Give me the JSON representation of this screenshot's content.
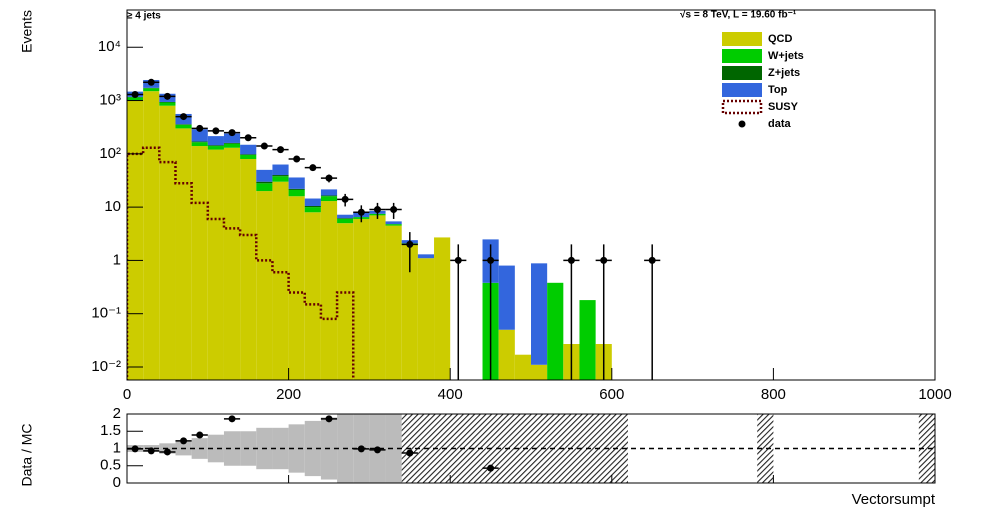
{
  "chart_data": {
    "type": "stacked_histogram",
    "annotation_left": "≥ 4 jets",
    "annotation_right": "√s = 8 TeV, L = 19.60 fb⁻¹",
    "y_label": "Events",
    "x_label": "Vectorsumpt",
    "ratio_label": "Data / MC",
    "log_y": true,
    "xlim": [
      0,
      1000
    ],
    "xticks": [
      0,
      200,
      400,
      600,
      800,
      1000
    ],
    "ylim": [
      0.0057,
      50000
    ],
    "yticks": [
      {
        "value": 0.01,
        "label": "10⁻²"
      },
      {
        "value": 0.1,
        "label": "10⁻¹"
      },
      1,
      10,
      {
        "value": 100,
        "label": "10²"
      },
      {
        "value": 1000,
        "label": "10³"
      },
      {
        "value": 10000,
        "label": "10⁴"
      }
    ],
    "bins": [
      0,
      20,
      40,
      60,
      80,
      100,
      120,
      140,
      160,
      180,
      200,
      220,
      240,
      260,
      280,
      300,
      320,
      340,
      360,
      380,
      400,
      420,
      440,
      460,
      480,
      500,
      520,
      540,
      560,
      580,
      600
    ],
    "series": [
      {
        "name": "QCD",
        "color": "#cccc00",
        "values": [
          1000,
          1500,
          800,
          300,
          140,
          120,
          130,
          80,
          20,
          30,
          16,
          8,
          13,
          5,
          6,
          7,
          4.5,
          2,
          1.1,
          2.7,
          0,
          0,
          0,
          0.05,
          0.017,
          0.011,
          0,
          0.027,
          0,
          0.027
        ]
      },
      {
        "name": "W+jets",
        "color": "#00cc00",
        "values": [
          150,
          200,
          120,
          50,
          25,
          20,
          25,
          15,
          8,
          8,
          5,
          2,
          3,
          1,
          0.5,
          0.5,
          0.3,
          0.1,
          0,
          0,
          0,
          0,
          0.38,
          0,
          0,
          0,
          0.38,
          0,
          0.18,
          0
        ]
      },
      {
        "name": "Z+jets",
        "color": "#006600",
        "values": [
          20,
          30,
          20,
          10,
          5,
          5,
          5,
          3,
          2,
          2,
          1,
          0.5,
          0.5,
          0.2,
          0,
          0,
          0,
          0,
          0,
          0,
          0,
          0,
          0,
          0,
          0,
          0,
          0,
          0,
          0,
          0
        ]
      },
      {
        "name": "Top",
        "color": "#3366dd",
        "values": [
          300,
          700,
          400,
          200,
          120,
          70,
          80,
          50,
          20,
          23,
          14,
          4,
          5,
          1,
          1.5,
          1,
          0.6,
          0.3,
          0.2,
          0,
          0,
          0,
          2.1,
          0.75,
          0,
          0.87,
          0,
          0,
          0,
          0
        ]
      }
    ],
    "signal": {
      "name": "SUSY",
      "color": "#660000",
      "values": [
        100,
        130,
        70,
        28,
        12,
        6,
        4,
        3,
        1,
        0.6,
        0.25,
        0.15,
        0.08,
        0.25
      ]
    },
    "data": {
      "name": "data",
      "color": "#000000",
      "xerr": 10,
      "x": [
        10,
        30,
        50,
        70,
        90,
        110,
        130,
        150,
        170,
        190,
        210,
        230,
        250,
        270,
        290,
        310,
        330,
        350,
        410,
        450,
        550,
        590,
        650
      ],
      "values": [
        1300,
        2200,
        1200,
        500,
        300,
        270,
        250,
        200,
        140,
        120,
        80,
        55,
        35,
        14,
        8,
        9,
        9,
        2,
        1,
        1,
        1,
        1,
        1
      ],
      "errors": [
        36,
        47,
        35,
        22,
        17,
        16,
        16,
        14,
        12,
        11,
        9,
        7.4,
        5.9,
        3.7,
        2.8,
        3,
        3,
        1.4,
        1,
        1,
        1,
        1,
        1
      ]
    },
    "ratio_ylim": [
      0,
      2
    ],
    "ratio_yticks": [
      0,
      0.5,
      1,
      1.5,
      2
    ],
    "ratio_reference": 1,
    "ratio_band_errors": [
      0.1,
      0.1,
      0.15,
      0.2,
      0.3,
      0.4,
      0.5,
      0.5,
      0.6,
      0.6,
      0.7,
      0.8,
      0.9,
      1,
      1,
      1,
      1,
      1,
      1,
      1
    ],
    "ratio_hatched": [
      [
        340,
        440
      ],
      [
        440,
        620
      ],
      [
        780,
        800
      ],
      [
        980,
        1000
      ]
    ],
    "ratio_points": {
      "x": [
        10,
        30,
        50,
        70,
        90,
        130,
        250,
        290,
        310,
        350,
        450
      ],
      "values": [
        0.99,
        0.93,
        0.9,
        1.22,
        1.39,
        1.86,
        1.86,
        0.99,
        0.96,
        0.87,
        0.43
      ]
    }
  }
}
